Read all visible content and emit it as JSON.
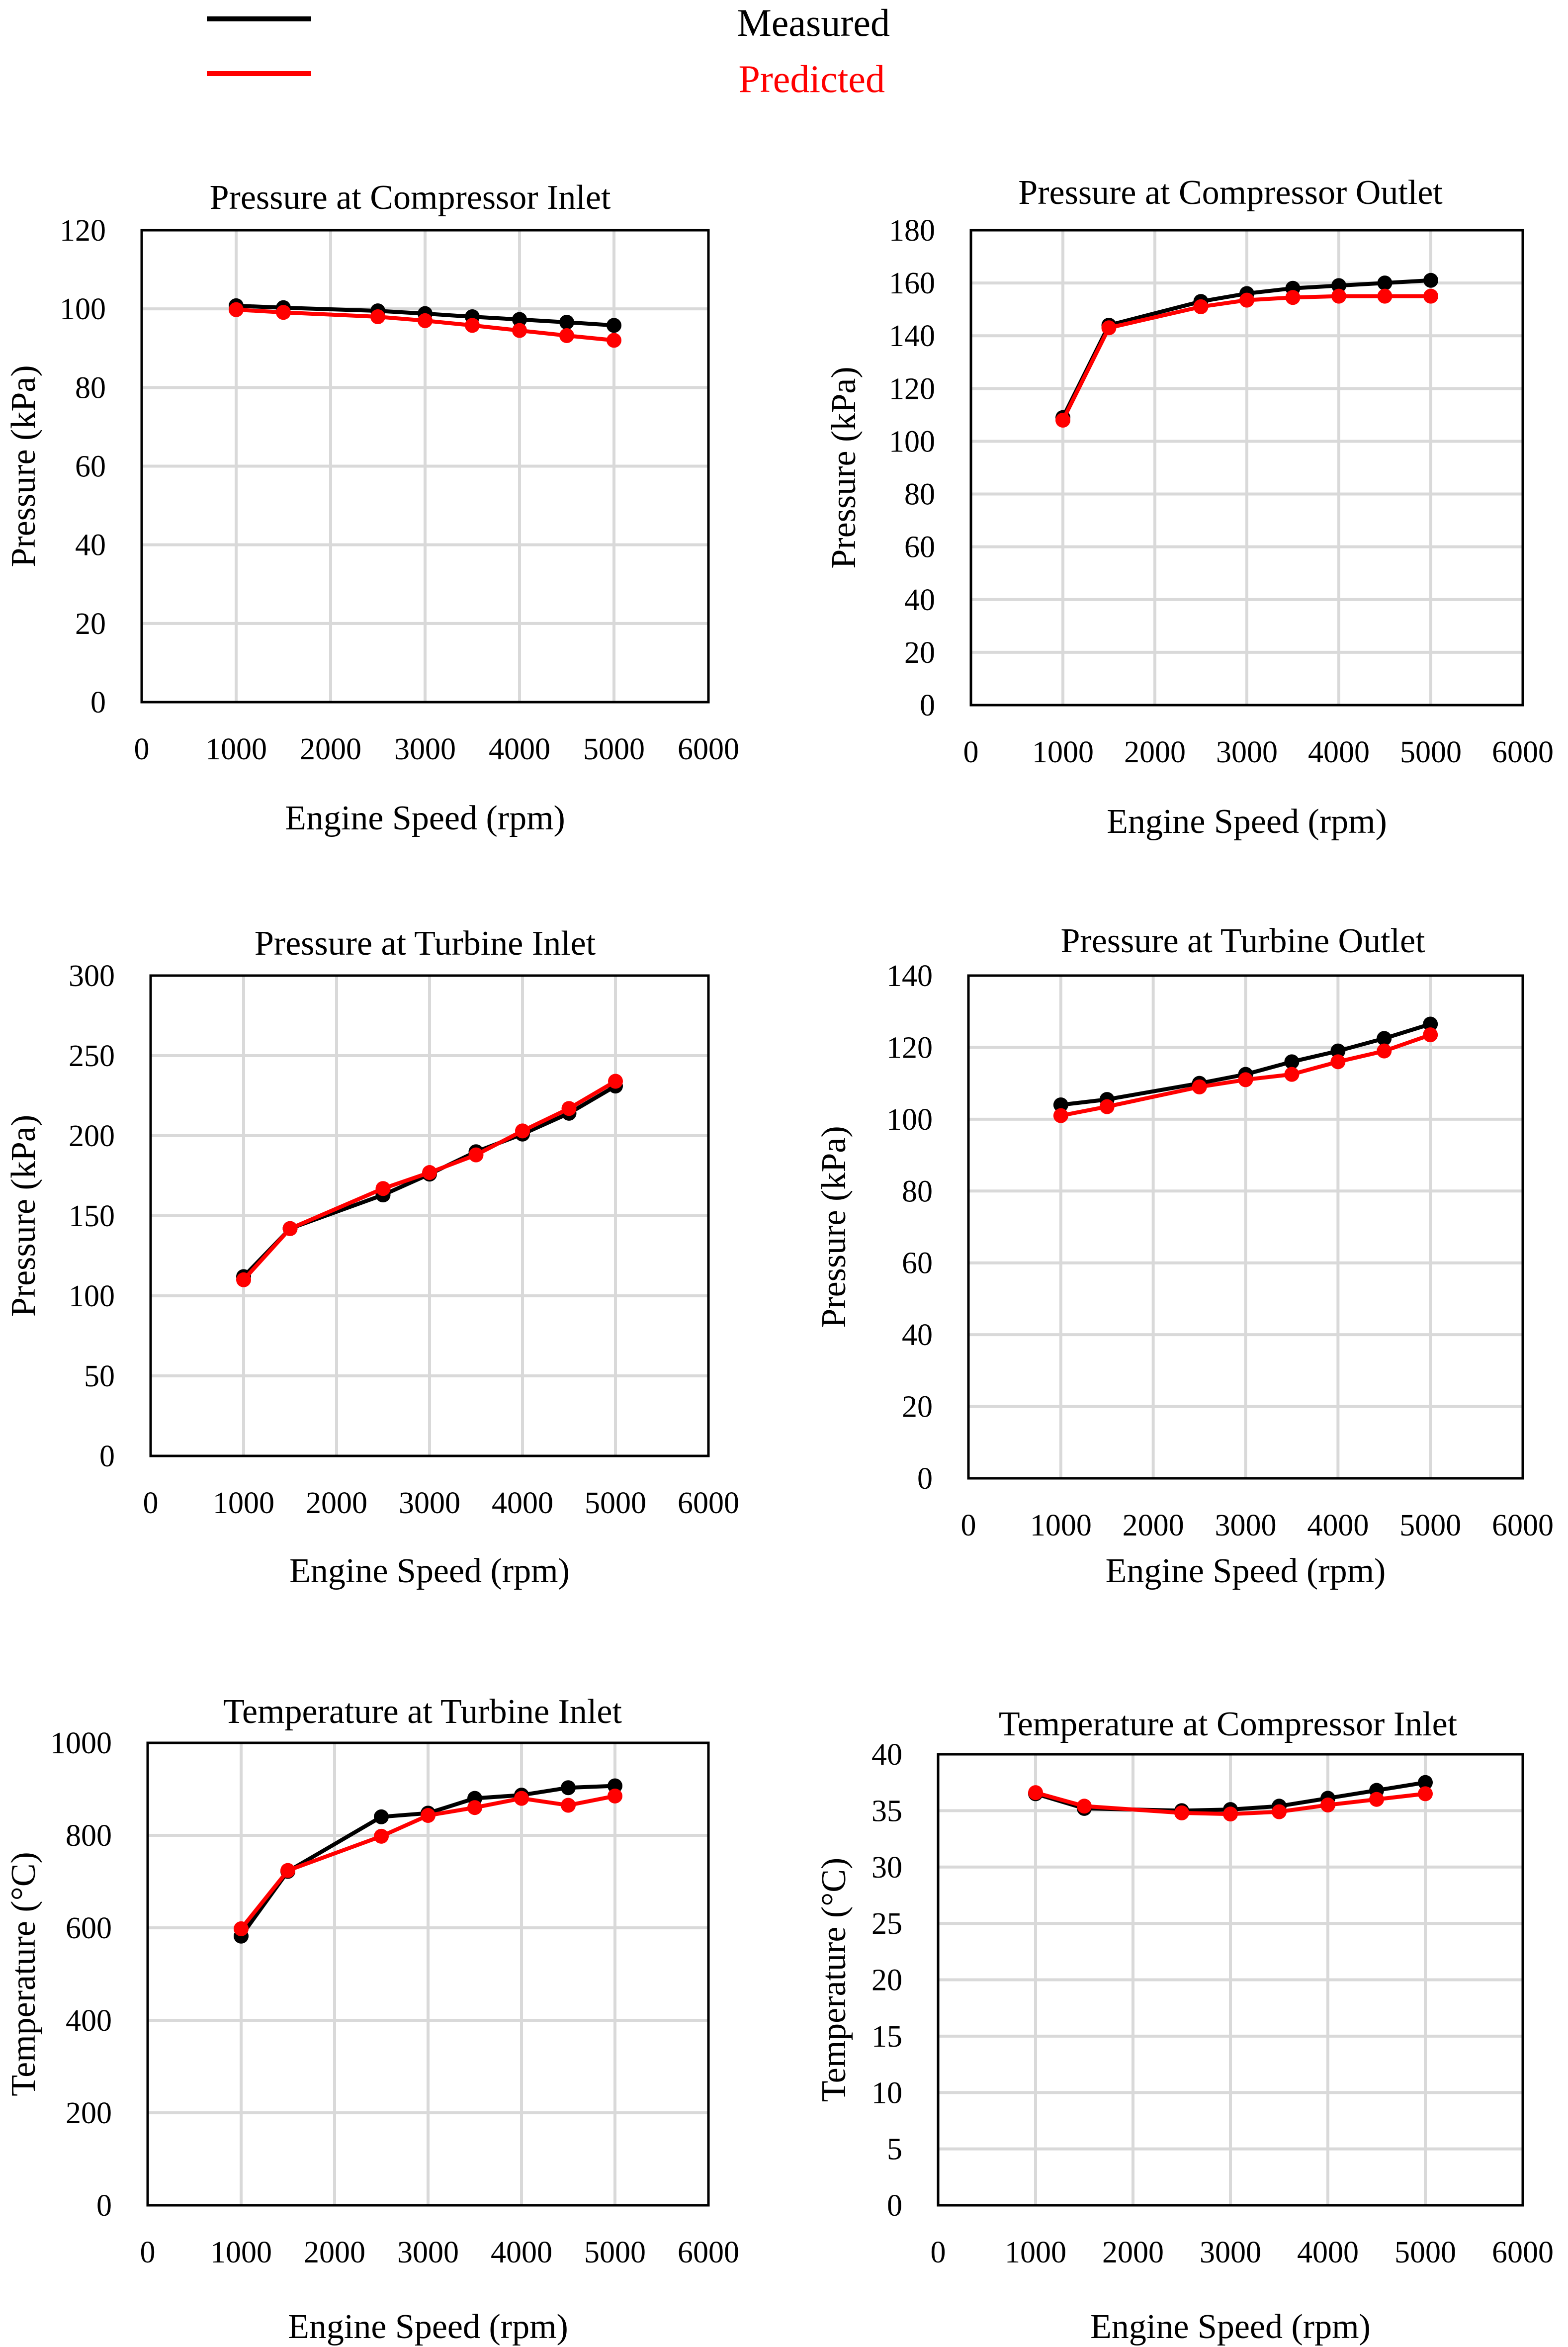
{
  "legend": {
    "measured": {
      "label": "Measured",
      "color": "#000000"
    },
    "predicted": {
      "label": "Predicted",
      "color": "#ff0000"
    }
  },
  "chart_data": [
    {
      "type": "line",
      "title": "Pressure at Compressor Inlet",
      "xlabel": "Engine Speed (rpm)",
      "ylabel": "Pressure (kPa)",
      "xlim": [
        0,
        6000
      ],
      "ylim": [
        0,
        120
      ],
      "xticks": [
        0,
        1000,
        2000,
        3000,
        4000,
        5000,
        6000
      ],
      "yticks": [
        0,
        20,
        40,
        60,
        80,
        100,
        120
      ],
      "grid": true,
      "series": [
        {
          "name": "Measured",
          "x": [
            1000,
            1500,
            2500,
            3000,
            3500,
            4000,
            4500,
            5000
          ],
          "y": [
            100.8,
            100.3,
            99.5,
            98.8,
            98.0,
            97.3,
            96.6,
            95.8
          ]
        },
        {
          "name": "Predicted",
          "x": [
            1000,
            1500,
            2500,
            3000,
            3500,
            4000,
            4500,
            5000
          ],
          "y": [
            99.8,
            99.1,
            98.0,
            97.0,
            95.8,
            94.5,
            93.2,
            92.0
          ]
        }
      ]
    },
    {
      "type": "line",
      "title": "Pressure at Compressor Outlet",
      "xlabel": "Engine Speed (rpm)",
      "ylabel": "Pressure (kPa)",
      "xlim": [
        0,
        6000
      ],
      "ylim": [
        0,
        180
      ],
      "xticks": [
        0,
        1000,
        2000,
        3000,
        4000,
        5000,
        6000
      ],
      "yticks": [
        0,
        20,
        40,
        60,
        80,
        100,
        120,
        140,
        160,
        180
      ],
      "grid": true,
      "series": [
        {
          "name": "Measured",
          "x": [
            1000,
            1500,
            2500,
            3000,
            3500,
            4000,
            4500,
            5000
          ],
          "y": [
            109,
            144,
            153,
            156,
            158,
            159,
            160,
            161
          ]
        },
        {
          "name": "Predicted",
          "x": [
            1000,
            1500,
            2500,
            3000,
            3500,
            4000,
            4500,
            5000
          ],
          "y": [
            108,
            143,
            151,
            153.5,
            154.5,
            155,
            155,
            155
          ]
        }
      ]
    },
    {
      "type": "line",
      "title": "Pressure at Turbine Inlet",
      "xlabel": "Engine Speed (rpm)",
      "ylabel": "Pressure (kPa)",
      "xlim": [
        0,
        6000
      ],
      "ylim": [
        0,
        300
      ],
      "xticks": [
        0,
        1000,
        2000,
        3000,
        4000,
        5000,
        6000
      ],
      "yticks": [
        0,
        50,
        100,
        150,
        200,
        250,
        300
      ],
      "grid": true,
      "series": [
        {
          "name": "Measured",
          "x": [
            1000,
            1500,
            2500,
            3000,
            3500,
            4000,
            4500,
            5000
          ],
          "y": [
            112,
            142,
            163,
            176,
            190,
            201,
            214,
            231
          ]
        },
        {
          "name": "Predicted",
          "x": [
            1000,
            1500,
            2500,
            3000,
            3500,
            4000,
            4500,
            5000
          ],
          "y": [
            110,
            142,
            167,
            177,
            188,
            203,
            217,
            234
          ]
        }
      ]
    },
    {
      "type": "line",
      "title": "Pressure at Turbine Outlet",
      "xlabel": "Engine Speed (rpm)",
      "ylabel": "Pressure (kPa)",
      "xlim": [
        0,
        6000
      ],
      "ylim": [
        0,
        140
      ],
      "xticks": [
        0,
        1000,
        2000,
        3000,
        4000,
        5000,
        6000
      ],
      "yticks": [
        0,
        20,
        40,
        60,
        80,
        100,
        120,
        140
      ],
      "grid": true,
      "series": [
        {
          "name": "Measured",
          "x": [
            1000,
            1500,
            2500,
            3000,
            3500,
            4000,
            4500,
            5000
          ],
          "y": [
            104,
            105.5,
            110,
            112.5,
            116,
            119,
            122.5,
            126.5
          ]
        },
        {
          "name": "Predicted",
          "x": [
            1000,
            1500,
            2500,
            3000,
            3500,
            4000,
            4500,
            5000
          ],
          "y": [
            101,
            103.5,
            109,
            111,
            112.5,
            116,
            119,
            123.5
          ]
        }
      ]
    },
    {
      "type": "line",
      "title": "Temperature at Turbine Inlet",
      "xlabel": "Engine Speed (rpm)",
      "ylabel": "Temperature (°C)",
      "xlim": [
        0,
        6000
      ],
      "ylim": [
        0,
        1000
      ],
      "xticks": [
        0,
        1000,
        2000,
        3000,
        4000,
        5000,
        6000
      ],
      "yticks": [
        0,
        200,
        400,
        600,
        800,
        1000
      ],
      "grid": true,
      "series": [
        {
          "name": "Measured",
          "x": [
            1000,
            1500,
            2500,
            3000,
            3500,
            4000,
            4500,
            5000
          ],
          "y": [
            582,
            722,
            840,
            848,
            880,
            887,
            903,
            907
          ]
        },
        {
          "name": "Predicted",
          "x": [
            1000,
            1500,
            2500,
            3000,
            3500,
            4000,
            4500,
            5000
          ],
          "y": [
            598,
            724,
            798,
            843,
            860,
            880,
            865,
            885
          ]
        }
      ]
    },
    {
      "type": "line",
      "title": "Temperature at Compressor Inlet",
      "xlabel": "Engine Speed (rpm)",
      "ylabel": "Temperature (°C)",
      "xlim": [
        0,
        6000
      ],
      "ylim": [
        0,
        40
      ],
      "xticks": [
        0,
        1000,
        2000,
        3000,
        4000,
        5000,
        6000
      ],
      "yticks": [
        0,
        5,
        10,
        15,
        20,
        25,
        30,
        35,
        40
      ],
      "grid": true,
      "series": [
        {
          "name": "Measured",
          "x": [
            1000,
            1500,
            2500,
            3000,
            3500,
            4000,
            4500,
            5000
          ],
          "y": [
            36.5,
            35.2,
            35.0,
            35.1,
            35.4,
            36.1,
            36.8,
            37.5
          ]
        },
        {
          "name": "Predicted",
          "x": [
            1000,
            1500,
            2500,
            3000,
            3500,
            4000,
            4500,
            5000
          ],
          "y": [
            36.6,
            35.4,
            34.8,
            34.7,
            34.9,
            35.5,
            36.0,
            36.5
          ]
        }
      ]
    }
  ]
}
